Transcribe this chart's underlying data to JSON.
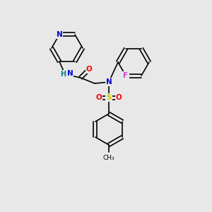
{
  "bg_color": "#e8e8e8",
  "bond_color": "#000000",
  "atom_colors": {
    "N": "#0000cc",
    "O": "#ff0000",
    "F": "#cc44cc",
    "S": "#cccc00",
    "H": "#008080",
    "C": "#000000"
  },
  "font_size": 7.5,
  "bond_width": 1.2
}
